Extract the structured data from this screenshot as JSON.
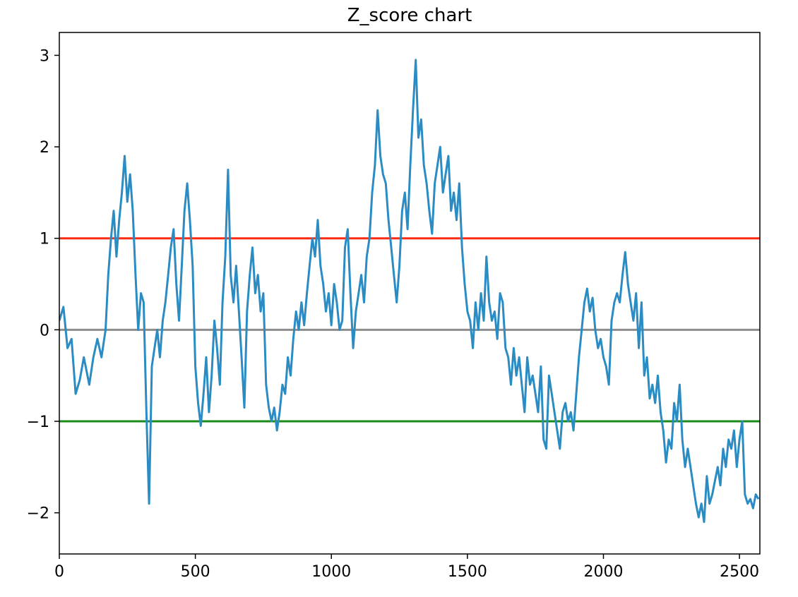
{
  "chart_data": {
    "type": "line",
    "title": "Z_score chart",
    "xlabel": "",
    "ylabel": "",
    "xlim": [
      0,
      2575
    ],
    "ylim": [
      -2.45,
      3.25
    ],
    "x_ticks": [
      0,
      500,
      1000,
      1500,
      2000,
      2500
    ],
    "x_tick_labels": [
      "0",
      "500",
      "1000",
      "1500",
      "2000",
      "2500"
    ],
    "y_ticks": [
      -2,
      -1,
      0,
      1,
      2,
      3
    ],
    "y_tick_labels": [
      "−2",
      "−1",
      "0",
      "1",
      "2",
      "3"
    ],
    "grid": false,
    "legend": "none",
    "reference_lines": [
      {
        "y": 1,
        "color": "#ff2a12"
      },
      {
        "y": 0,
        "color": "#8c8c8c"
      },
      {
        "y": -1,
        "color": "#1a8a1a"
      }
    ],
    "series": [
      {
        "color": "#2b8cc4",
        "points": [
          [
            0,
            0.1
          ],
          [
            15,
            0.25
          ],
          [
            30,
            -0.2
          ],
          [
            45,
            -0.1
          ],
          [
            60,
            -0.7
          ],
          [
            75,
            -0.55
          ],
          [
            90,
            -0.3
          ],
          [
            110,
            -0.6
          ],
          [
            125,
            -0.3
          ],
          [
            140,
            -0.1
          ],
          [
            155,
            -0.3
          ],
          [
            170,
            0.0
          ],
          [
            180,
            0.6
          ],
          [
            190,
            1.0
          ],
          [
            200,
            1.3
          ],
          [
            210,
            0.8
          ],
          [
            220,
            1.2
          ],
          [
            230,
            1.5
          ],
          [
            240,
            1.9
          ],
          [
            250,
            1.4
          ],
          [
            260,
            1.7
          ],
          [
            270,
            1.3
          ],
          [
            280,
            0.6
          ],
          [
            290,
            0.0
          ],
          [
            300,
            0.4
          ],
          [
            310,
            0.3
          ],
          [
            320,
            -0.9
          ],
          [
            330,
            -1.9
          ],
          [
            340,
            -0.4
          ],
          [
            350,
            -0.2
          ],
          [
            360,
            0.0
          ],
          [
            370,
            -0.3
          ],
          [
            380,
            0.1
          ],
          [
            390,
            0.3
          ],
          [
            400,
            0.6
          ],
          [
            410,
            0.9
          ],
          [
            420,
            1.1
          ],
          [
            430,
            0.5
          ],
          [
            440,
            0.1
          ],
          [
            450,
            0.7
          ],
          [
            460,
            1.3
          ],
          [
            470,
            1.6
          ],
          [
            480,
            1.2
          ],
          [
            490,
            0.7
          ],
          [
            500,
            -0.4
          ],
          [
            510,
            -0.8
          ],
          [
            520,
            -1.05
          ],
          [
            530,
            -0.7
          ],
          [
            540,
            -0.3
          ],
          [
            550,
            -0.9
          ],
          [
            560,
            -0.5
          ],
          [
            570,
            0.1
          ],
          [
            580,
            -0.2
          ],
          [
            590,
            -0.6
          ],
          [
            600,
            0.3
          ],
          [
            610,
            0.8
          ],
          [
            620,
            1.75
          ],
          [
            630,
            0.6
          ],
          [
            640,
            0.3
          ],
          [
            650,
            0.7
          ],
          [
            660,
            0.2
          ],
          [
            670,
            -0.3
          ],
          [
            680,
            -0.85
          ],
          [
            690,
            0.2
          ],
          [
            700,
            0.6
          ],
          [
            710,
            0.9
          ],
          [
            720,
            0.4
          ],
          [
            730,
            0.6
          ],
          [
            740,
            0.2
          ],
          [
            750,
            0.4
          ],
          [
            760,
            -0.6
          ],
          [
            770,
            -0.85
          ],
          [
            780,
            -1.0
          ],
          [
            790,
            -0.85
          ],
          [
            800,
            -1.1
          ],
          [
            810,
            -0.9
          ],
          [
            820,
            -0.6
          ],
          [
            830,
            -0.7
          ],
          [
            840,
            -0.3
          ],
          [
            850,
            -0.5
          ],
          [
            860,
            -0.1
          ],
          [
            870,
            0.2
          ],
          [
            880,
            0.0
          ],
          [
            890,
            0.3
          ],
          [
            900,
            0.05
          ],
          [
            910,
            0.4
          ],
          [
            920,
            0.7
          ],
          [
            930,
            1.0
          ],
          [
            940,
            0.8
          ],
          [
            950,
            1.2
          ],
          [
            960,
            0.7
          ],
          [
            970,
            0.5
          ],
          [
            980,
            0.2
          ],
          [
            990,
            0.4
          ],
          [
            1000,
            0.05
          ],
          [
            1010,
            0.5
          ],
          [
            1020,
            0.3
          ],
          [
            1030,
            0.0
          ],
          [
            1040,
            0.1
          ],
          [
            1050,
            0.9
          ],
          [
            1060,
            1.1
          ],
          [
            1070,
            0.4
          ],
          [
            1080,
            -0.2
          ],
          [
            1090,
            0.2
          ],
          [
            1100,
            0.4
          ],
          [
            1110,
            0.6
          ],
          [
            1120,
            0.3
          ],
          [
            1130,
            0.8
          ],
          [
            1140,
            1.0
          ],
          [
            1150,
            1.5
          ],
          [
            1160,
            1.8
          ],
          [
            1170,
            2.4
          ],
          [
            1180,
            1.9
          ],
          [
            1190,
            1.7
          ],
          [
            1200,
            1.6
          ],
          [
            1210,
            1.2
          ],
          [
            1220,
            0.9
          ],
          [
            1230,
            0.6
          ],
          [
            1240,
            0.3
          ],
          [
            1250,
            0.7
          ],
          [
            1260,
            1.3
          ],
          [
            1270,
            1.5
          ],
          [
            1280,
            1.1
          ],
          [
            1290,
            1.8
          ],
          [
            1300,
            2.4
          ],
          [
            1310,
            2.95
          ],
          [
            1320,
            2.1
          ],
          [
            1330,
            2.3
          ],
          [
            1340,
            1.8
          ],
          [
            1350,
            1.6
          ],
          [
            1360,
            1.3
          ],
          [
            1370,
            1.05
          ],
          [
            1380,
            1.6
          ],
          [
            1390,
            1.8
          ],
          [
            1400,
            2.0
          ],
          [
            1410,
            1.5
          ],
          [
            1420,
            1.7
          ],
          [
            1430,
            1.9
          ],
          [
            1440,
            1.3
          ],
          [
            1450,
            1.5
          ],
          [
            1460,
            1.2
          ],
          [
            1470,
            1.6
          ],
          [
            1480,
            0.9
          ],
          [
            1490,
            0.5
          ],
          [
            1500,
            0.2
          ],
          [
            1510,
            0.1
          ],
          [
            1520,
            -0.2
          ],
          [
            1530,
            0.3
          ],
          [
            1540,
            0.0
          ],
          [
            1550,
            0.4
          ],
          [
            1560,
            0.1
          ],
          [
            1570,
            0.8
          ],
          [
            1580,
            0.3
          ],
          [
            1590,
            0.1
          ],
          [
            1600,
            0.2
          ],
          [
            1610,
            -0.1
          ],
          [
            1620,
            0.4
          ],
          [
            1630,
            0.3
          ],
          [
            1640,
            -0.2
          ],
          [
            1650,
            -0.3
          ],
          [
            1660,
            -0.6
          ],
          [
            1670,
            -0.2
          ],
          [
            1680,
            -0.5
          ],
          [
            1690,
            -0.3
          ],
          [
            1700,
            -0.6
          ],
          [
            1710,
            -0.9
          ],
          [
            1720,
            -0.3
          ],
          [
            1730,
            -0.6
          ],
          [
            1740,
            -0.5
          ],
          [
            1750,
            -0.7
          ],
          [
            1760,
            -0.9
          ],
          [
            1770,
            -0.4
          ],
          [
            1780,
            -1.2
          ],
          [
            1790,
            -1.3
          ],
          [
            1800,
            -0.5
          ],
          [
            1810,
            -0.7
          ],
          [
            1820,
            -0.9
          ],
          [
            1830,
            -1.1
          ],
          [
            1840,
            -1.3
          ],
          [
            1850,
            -0.9
          ],
          [
            1860,
            -0.8
          ],
          [
            1870,
            -1.0
          ],
          [
            1880,
            -0.9
          ],
          [
            1890,
            -1.1
          ],
          [
            1900,
            -0.7
          ],
          [
            1910,
            -0.3
          ],
          [
            1920,
            0.0
          ],
          [
            1930,
            0.3
          ],
          [
            1940,
            0.45
          ],
          [
            1950,
            0.2
          ],
          [
            1960,
            0.35
          ],
          [
            1970,
            0.0
          ],
          [
            1980,
            -0.2
          ],
          [
            1990,
            -0.1
          ],
          [
            2000,
            -0.3
          ],
          [
            2010,
            -0.4
          ],
          [
            2020,
            -0.6
          ],
          [
            2030,
            0.1
          ],
          [
            2040,
            0.3
          ],
          [
            2050,
            0.4
          ],
          [
            2060,
            0.3
          ],
          [
            2070,
            0.6
          ],
          [
            2080,
            0.85
          ],
          [
            2090,
            0.5
          ],
          [
            2100,
            0.3
          ],
          [
            2110,
            0.1
          ],
          [
            2120,
            0.4
          ],
          [
            2130,
            -0.2
          ],
          [
            2140,
            0.3
          ],
          [
            2150,
            -0.5
          ],
          [
            2160,
            -0.3
          ],
          [
            2170,
            -0.75
          ],
          [
            2180,
            -0.6
          ],
          [
            2190,
            -0.8
          ],
          [
            2200,
            -0.5
          ],
          [
            2210,
            -0.9
          ],
          [
            2220,
            -1.1
          ],
          [
            2230,
            -1.45
          ],
          [
            2240,
            -1.2
          ],
          [
            2250,
            -1.3
          ],
          [
            2260,
            -0.8
          ],
          [
            2270,
            -1.0
          ],
          [
            2280,
            -0.6
          ],
          [
            2290,
            -1.2
          ],
          [
            2300,
            -1.5
          ],
          [
            2310,
            -1.3
          ],
          [
            2320,
            -1.5
          ],
          [
            2330,
            -1.7
          ],
          [
            2340,
            -1.9
          ],
          [
            2350,
            -2.05
          ],
          [
            2360,
            -1.9
          ],
          [
            2370,
            -2.1
          ],
          [
            2380,
            -1.6
          ],
          [
            2390,
            -1.9
          ],
          [
            2400,
            -1.8
          ],
          [
            2410,
            -1.65
          ],
          [
            2420,
            -1.5
          ],
          [
            2430,
            -1.7
          ],
          [
            2440,
            -1.3
          ],
          [
            2450,
            -1.5
          ],
          [
            2460,
            -1.2
          ],
          [
            2470,
            -1.3
          ],
          [
            2480,
            -1.1
          ],
          [
            2490,
            -1.5
          ],
          [
            2500,
            -1.2
          ],
          [
            2510,
            -1.0
          ],
          [
            2520,
            -1.8
          ],
          [
            2530,
            -1.9
          ],
          [
            2540,
            -1.85
          ],
          [
            2550,
            -1.95
          ],
          [
            2560,
            -1.8
          ],
          [
            2570,
            -1.85
          ]
        ]
      }
    ]
  }
}
